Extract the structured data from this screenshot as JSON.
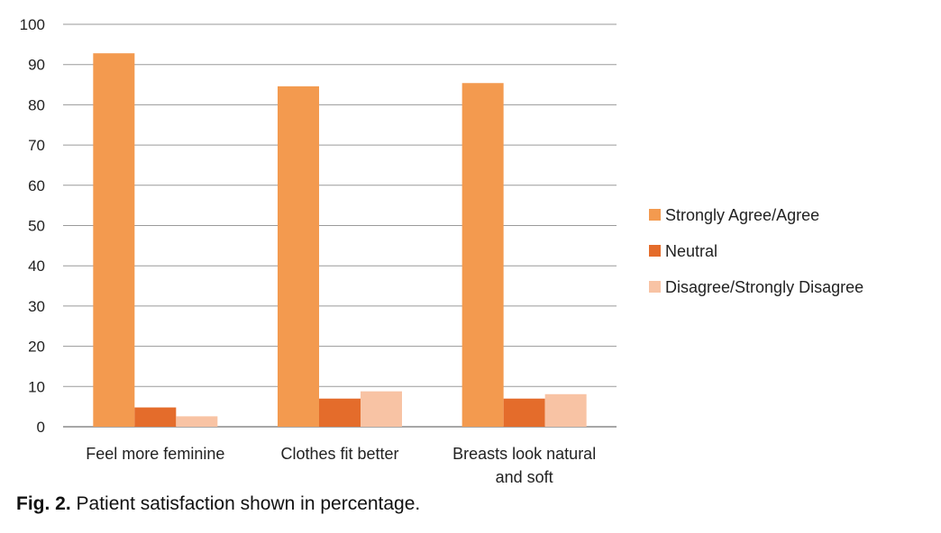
{
  "chart_data": {
    "type": "bar",
    "title": "",
    "xlabel": "",
    "ylabel": "",
    "categories": [
      [
        "Feel more feminine"
      ],
      [
        "Clothes fit better"
      ],
      [
        "Breasts look natural",
        "and soft"
      ]
    ],
    "series": [
      {
        "name": "Strongly Agree/Agree",
        "color": "#f39a4f",
        "values": [
          92.8,
          84.6,
          85.4
        ]
      },
      {
        "name": "Neutral",
        "color": "#e46c2b",
        "values": [
          4.8,
          7.0,
          7.0
        ]
      },
      {
        "name": "Disagree/Strongly Disagree",
        "color": "#f8c3a4",
        "values": [
          2.6,
          8.8,
          8.1
        ]
      }
    ],
    "ylim": [
      0,
      100
    ],
    "yticks": [
      "0",
      "10",
      "20",
      "30",
      "40",
      "50",
      "60",
      "70",
      "80",
      "90",
      "100"
    ],
    "grid": true,
    "legend_position": "right"
  },
  "caption": {
    "label": "Fig. 2.",
    "text": " Patient satisfaction shown in percentage."
  }
}
